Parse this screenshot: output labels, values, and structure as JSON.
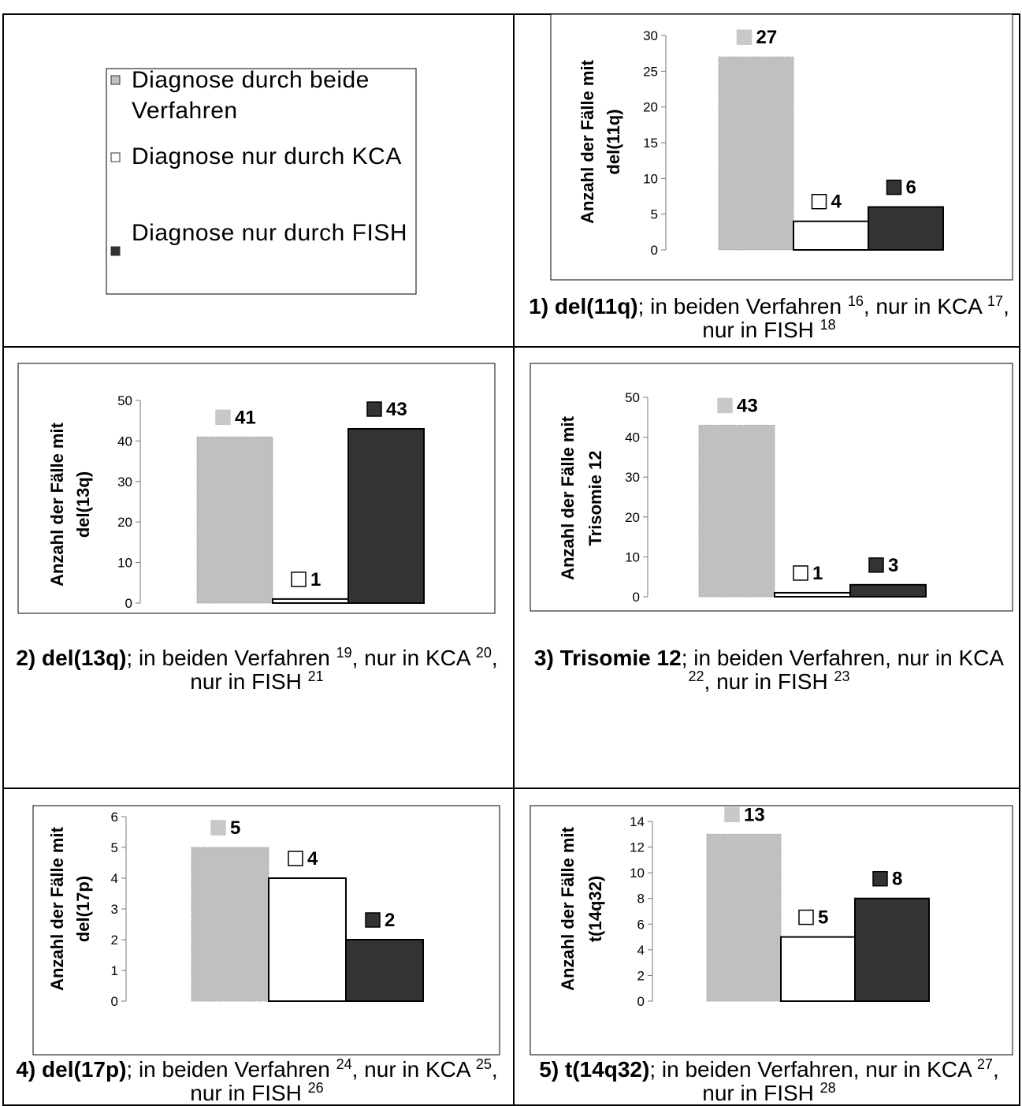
{
  "legend": {
    "items": [
      {
        "label": "Diagnose durch beide Verfahren",
        "color": "#c0c0c0"
      },
      {
        "label": "Diagnose nur durch KCA",
        "color": "#ffffff"
      },
      {
        "label": "Diagnose nur durch FISH",
        "color": "#333333"
      }
    ]
  },
  "chart_data": [
    {
      "type": "bar",
      "ylabel": [
        "Anzahl der Fälle mit",
        "del(11q)"
      ],
      "values": [
        27,
        4,
        6
      ],
      "ylim": [
        0,
        30
      ],
      "yticks": [
        0,
        5,
        10,
        15,
        20,
        25,
        30
      ],
      "caption": [
        {
          "text": "1) del(11q)",
          "style": "bold"
        },
        {
          "text": "; in beiden Verfahren ",
          "style": "normal"
        },
        {
          "text": "16",
          "style": "sup"
        },
        {
          "text": ", nur in KCA ",
          "style": "normal"
        },
        {
          "text": "17",
          "style": "sup"
        },
        {
          "text": ", nur in FISH ",
          "style": "normal"
        },
        {
          "text": "18",
          "style": "sup"
        }
      ]
    },
    {
      "type": "bar",
      "ylabel": [
        "Anzahl der Fälle mit",
        "del(13q)"
      ],
      "values": [
        41,
        1,
        43
      ],
      "ylim": [
        0,
        50
      ],
      "yticks": [
        0,
        10,
        20,
        30,
        40,
        50
      ],
      "caption": [
        {
          "text": "2) del(13q)",
          "style": "bold"
        },
        {
          "text": "; in beiden Verfahren ",
          "style": "normal"
        },
        {
          "text": "19",
          "style": "sup"
        },
        {
          "text": ", nur in KCA ",
          "style": "normal"
        },
        {
          "text": "20",
          "style": "sup"
        },
        {
          "text": ", nur in FISH ",
          "style": "normal"
        },
        {
          "text": "21",
          "style": "sup"
        }
      ]
    },
    {
      "type": "bar",
      "ylabel": [
        "Anzahl der Fälle mit",
        "Trisomie 12"
      ],
      "values": [
        43,
        1,
        3
      ],
      "ylim": [
        0,
        50
      ],
      "yticks": [
        0,
        10,
        20,
        30,
        40,
        50
      ],
      "caption": [
        {
          "text": "3) Trisomie 12",
          "style": "bold"
        },
        {
          "text": "; in beiden Verfahren, nur in KCA ",
          "style": "normal"
        },
        {
          "text": "22",
          "style": "sup"
        },
        {
          "text": ", nur in FISH ",
          "style": "normal"
        },
        {
          "text": "23",
          "style": "sup"
        }
      ]
    },
    {
      "type": "bar",
      "ylabel": [
        "Anzahl der Fälle mit",
        "del(17p)"
      ],
      "values": [
        5,
        4,
        2
      ],
      "ylim": [
        0,
        6
      ],
      "yticks": [
        0,
        1,
        2,
        3,
        4,
        5,
        6
      ],
      "caption": [
        {
          "text": "4) del(17p)",
          "style": "bold"
        },
        {
          "text": "; in beiden Verfahren ",
          "style": "normal"
        },
        {
          "text": "24",
          "style": "sup"
        },
        {
          "text": ", nur in KCA ",
          "style": "normal"
        },
        {
          "text": "25",
          "style": "sup"
        },
        {
          "text": ", nur in FISH ",
          "style": "normal"
        },
        {
          "text": "26",
          "style": "sup"
        }
      ]
    },
    {
      "type": "bar",
      "ylabel": [
        "Anzahl der Fälle mit",
        "t(14q32)"
      ],
      "values": [
        13,
        5,
        8
      ],
      "ylim": [
        0,
        14
      ],
      "yticks": [
        0,
        2,
        4,
        6,
        8,
        10,
        12,
        14
      ],
      "caption": [
        {
          "text": "5) t(14q32)",
          "style": "bold"
        },
        {
          "text": "; in beiden Verfahren, nur in KCA ",
          "style": "normal"
        },
        {
          "text": "27",
          "style": "sup"
        },
        {
          "text": ", nur in FISH ",
          "style": "normal"
        },
        {
          "text": "28",
          "style": "sup"
        }
      ]
    }
  ]
}
